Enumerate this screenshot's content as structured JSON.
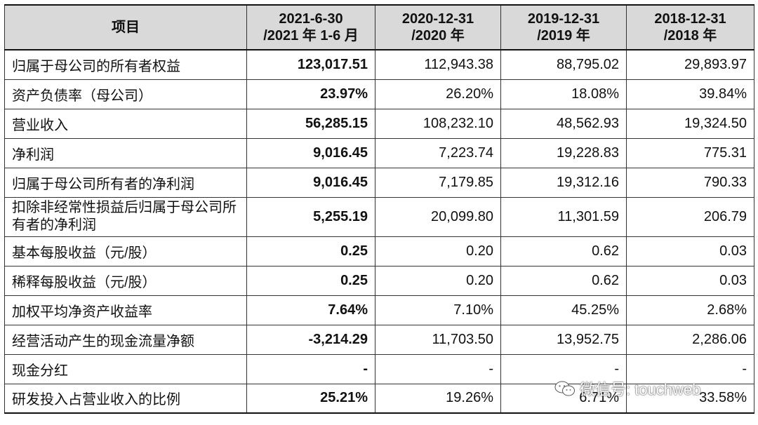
{
  "header": {
    "item_label": "项目",
    "periods": [
      {
        "line1": "2021-6-30",
        "line2": "/2021 年 1-6 月"
      },
      {
        "line1": "2020-12-31",
        "line2": "/2020 年"
      },
      {
        "line1": "2019-12-31",
        "line2": "/2019 年"
      },
      {
        "line1": "2018-12-31",
        "line2": "/2018 年"
      }
    ]
  },
  "rows": [
    {
      "label": "归属于母公司的所有者权益",
      "values": [
        "123,017.51",
        "112,943.38",
        "88,795.02",
        "29,893.97"
      ]
    },
    {
      "label": "资产负债率（母公司）",
      "values": [
        "23.97%",
        "26.20%",
        "18.08%",
        "39.84%"
      ]
    },
    {
      "label": "营业收入",
      "values": [
        "56,285.15",
        "108,232.10",
        "48,562.93",
        "19,324.50"
      ]
    },
    {
      "label": "净利润",
      "values": [
        "9,016.45",
        "7,223.74",
        "19,228.83",
        "775.31"
      ]
    },
    {
      "label": "归属于母公司所有者的净利润",
      "values": [
        "9,016.45",
        "7,179.85",
        "19,312.16",
        "790.33"
      ]
    },
    {
      "label": "扣除非经常性损益后归属于母公司所有者的净利润",
      "values": [
        "5,255.19",
        "20,099.80",
        "11,301.59",
        "206.79"
      ]
    },
    {
      "label": "基本每股收益（元/股）",
      "values": [
        "0.25",
        "0.20",
        "0.62",
        "0.03"
      ]
    },
    {
      "label": "稀释每股收益（元/股）",
      "values": [
        "0.25",
        "0.20",
        "0.62",
        "0.03"
      ]
    },
    {
      "label": "加权平均净资产收益率",
      "values": [
        "7.64%",
        "7.10%",
        "45.25%",
        "2.68%"
      ]
    },
    {
      "label": "经营活动产生的现金流量净额",
      "values": [
        "-3,214.29",
        "11,703.50",
        "13,952.75",
        "2,286.06"
      ]
    },
    {
      "label": "现金分红",
      "values": [
        "-",
        "-",
        "-",
        "-"
      ]
    },
    {
      "label": "研发投入占营业收入的比例",
      "values": [
        "25.21%",
        "19.26%",
        "6.71%",
        "33.58%"
      ]
    }
  ],
  "watermark": {
    "text": "微信号: touchweb",
    "icon": "wechat-icon"
  }
}
